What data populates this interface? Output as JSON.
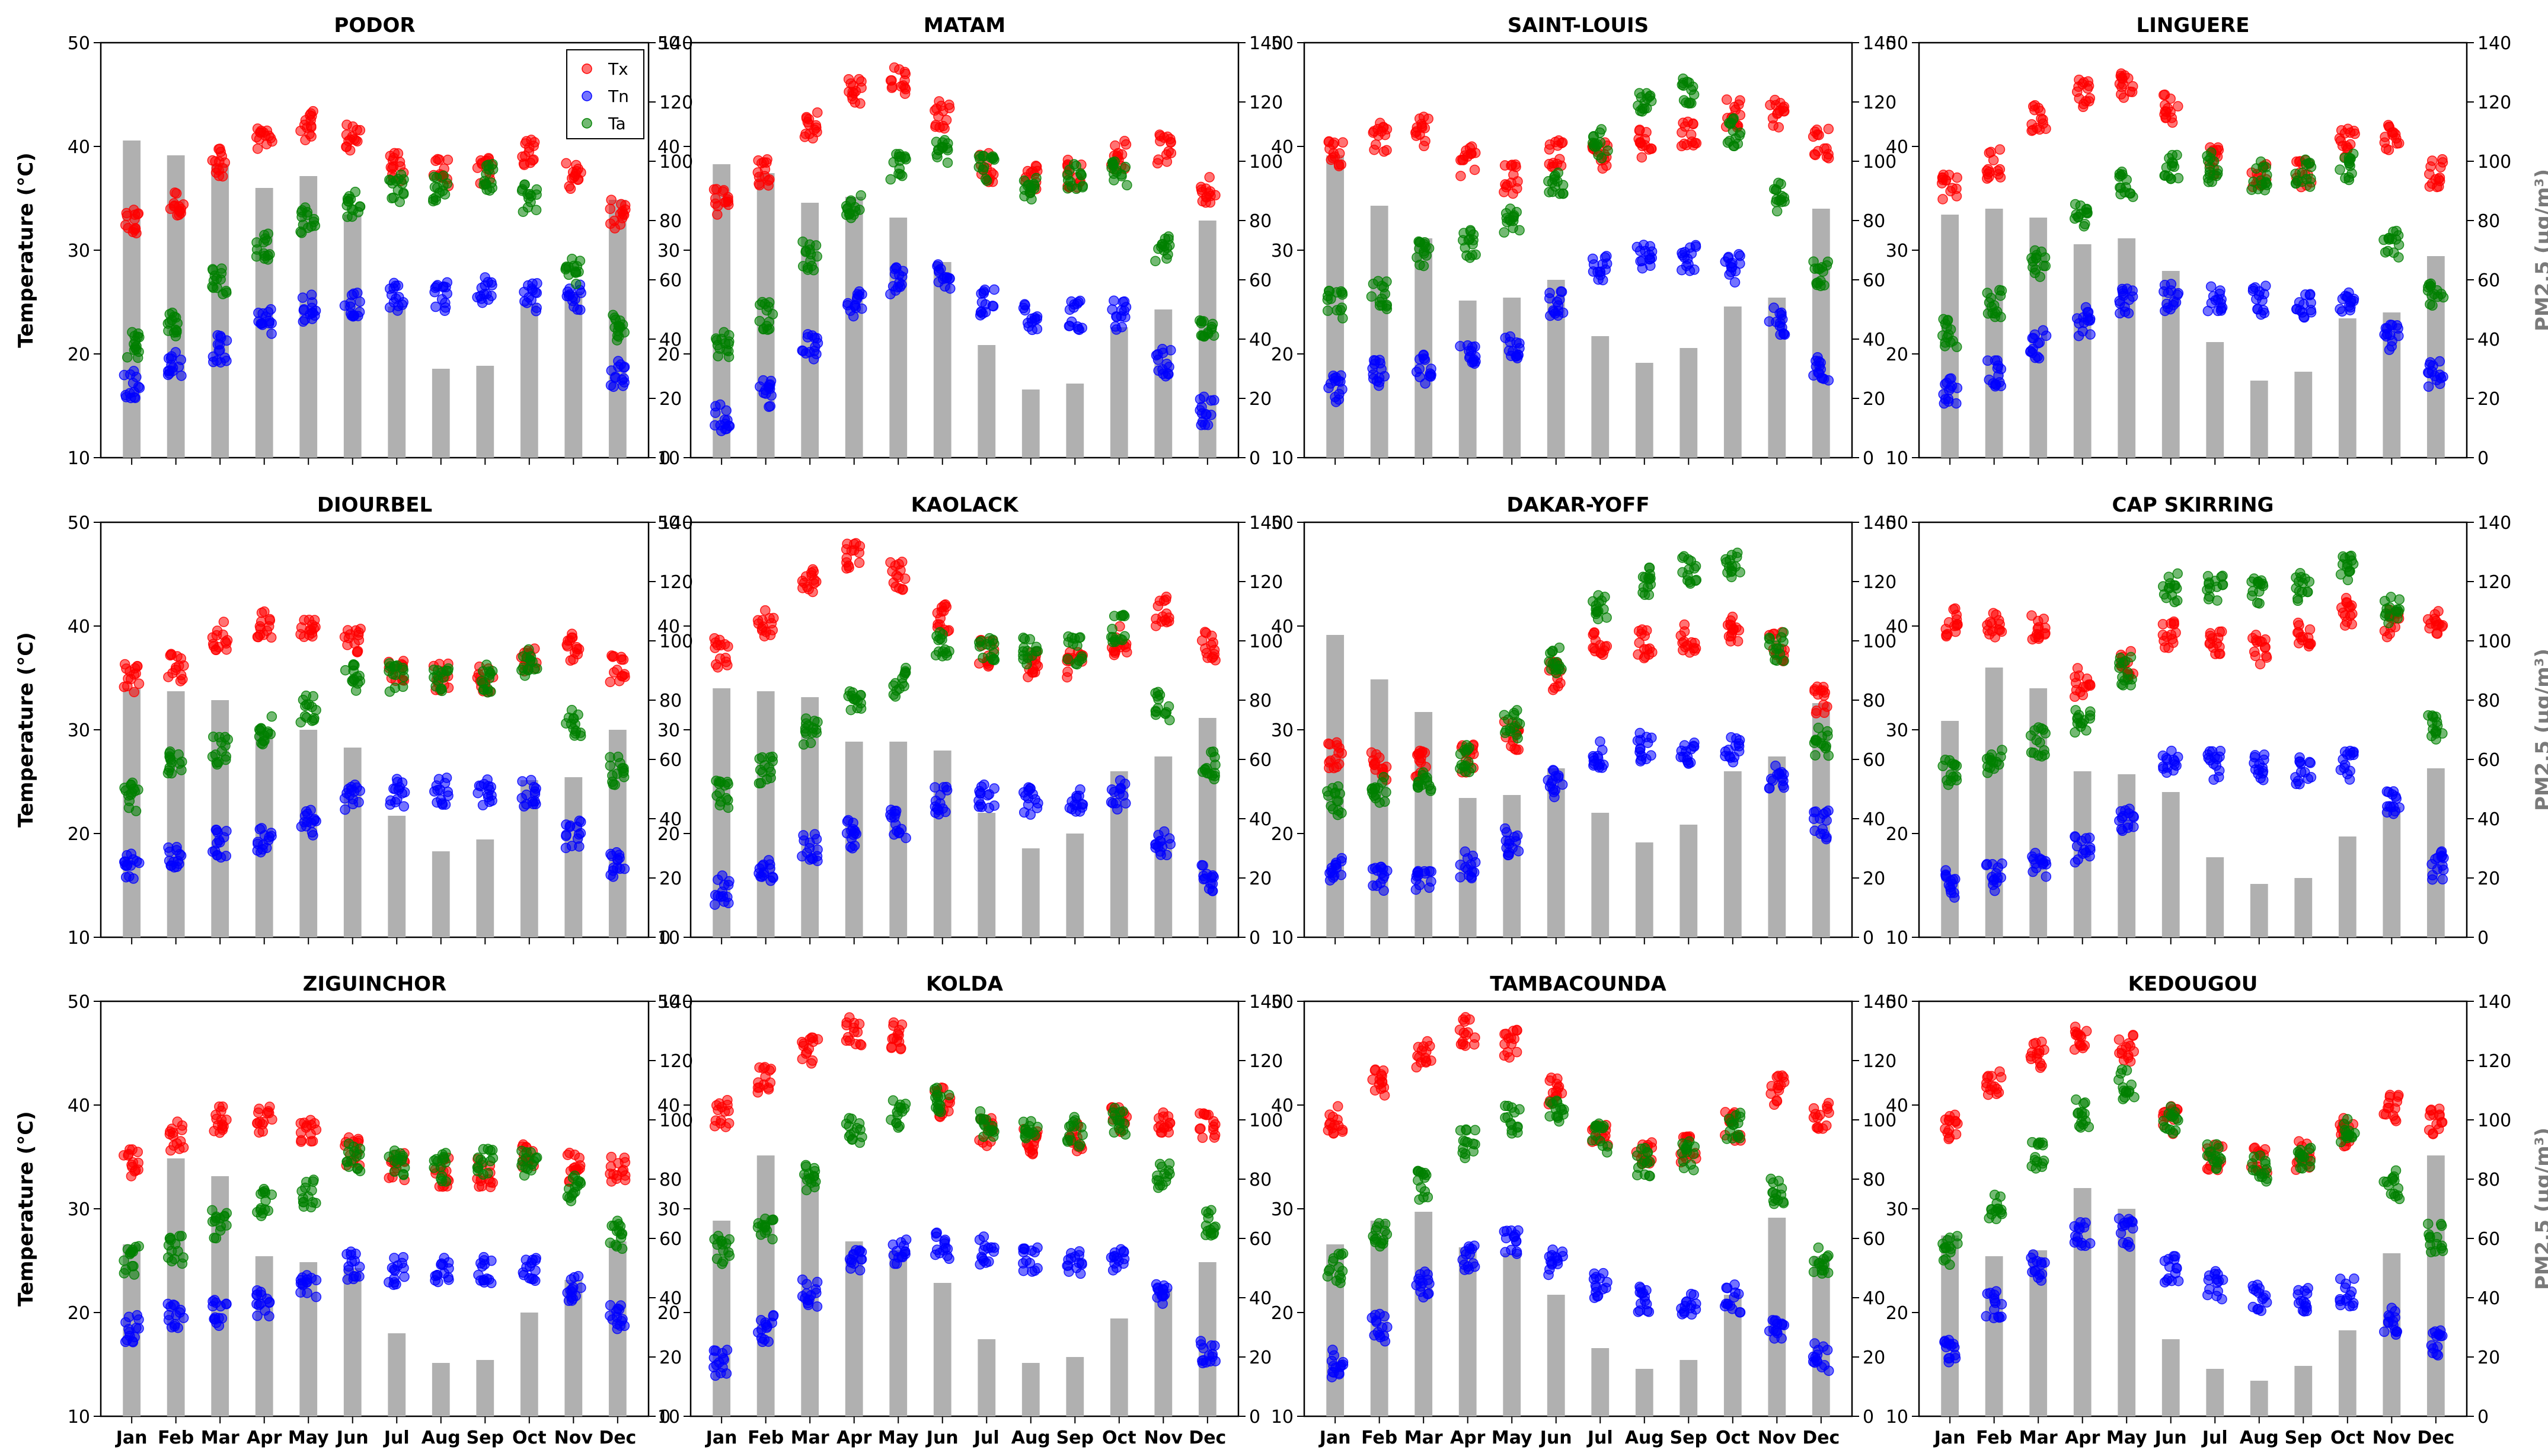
{
  "figure": {
    "left_axis_label": "Temperature (°C)",
    "right_axis_label": "PM2.5 (μg/m³)",
    "legend": [
      {
        "key": "Tx",
        "label": "Tx",
        "color": "#ff0000"
      },
      {
        "key": "Tn",
        "label": "Tn",
        "color": "#0000ff"
      },
      {
        "key": "Ta",
        "label": "Ta",
        "color": "#008000"
      }
    ],
    "bar_color": "#b0b0b0"
  },
  "chart_data": [
    {
      "type": "bar+scatter",
      "title": "PODOR",
      "categories": [
        "Jan",
        "Feb",
        "Mar",
        "Apr",
        "May",
        "Jun",
        "Jul",
        "Aug",
        "Sep",
        "Oct",
        "Nov",
        "Dec"
      ],
      "ylabel": "Temperature (°C)",
      "ylim": [
        10,
        50
      ],
      "y2label": "PM2.5 (μg/m³)",
      "y2lim": [
        0,
        140
      ],
      "legend_position": "top-right",
      "pm25": [
        107,
        102,
        99,
        91,
        95,
        82,
        51,
        30,
        31,
        52,
        56,
        87
      ],
      "tx": [
        32.5,
        34.5,
        38.5,
        40.5,
        42,
        41,
        38,
        37.5,
        37.5,
        39.5,
        37,
        33.5
      ],
      "tn": [
        17,
        19,
        20.5,
        23,
        24.5,
        25,
        25.5,
        25.5,
        26,
        25.5,
        25.5,
        18
      ],
      "ta": [
        21,
        23,
        27,
        30.5,
        33,
        34.5,
        36,
        36,
        37,
        35,
        28,
        22.5
      ]
    },
    {
      "type": "bar+scatter",
      "title": "MATAM",
      "categories": [
        "Jan",
        "Feb",
        "Mar",
        "Apr",
        "May",
        "Jun",
        "Jul",
        "Aug",
        "Sep",
        "Oct",
        "Nov",
        "Dec"
      ],
      "ylabel": "Temperature (°C)",
      "ylim": [
        10,
        50
      ],
      "y2label": "PM2.5 (μg/m³)",
      "y2lim": [
        0,
        140
      ],
      "legend_position": "none",
      "pm25": [
        99,
        96,
        86,
        88,
        81,
        66,
        38,
        23,
        25,
        44,
        50,
        80
      ],
      "tx": [
        87,
        96,
        112,
        124,
        127,
        116,
        98,
        94,
        96,
        102,
        104,
        90
      ],
      "tn": [
        14,
        22,
        38,
        52,
        60,
        62,
        53,
        48,
        48,
        48,
        32,
        16
      ],
      "ta": [
        38,
        48,
        68,
        84,
        98,
        104,
        98,
        92,
        94,
        96,
        70,
        45
      ]
    },
    {
      "type": "bar+scatter",
      "title": "SAINT-LOUIS",
      "categories": [
        "Jan",
        "Feb",
        "Mar",
        "Apr",
        "May",
        "Jun",
        "Jul",
        "Aug",
        "Sep",
        "Oct",
        "Nov",
        "Dec"
      ],
      "ylabel": "Temperature (°C)",
      "ylim": [
        10,
        50
      ],
      "y2label": "PM2.5 (μg/m³)",
      "y2lim": [
        0,
        140
      ],
      "legend_position": "none",
      "pm25": [
        102,
        85,
        74,
        53,
        54,
        60,
        41,
        32,
        37,
        51,
        54,
        84
      ],
      "tx": [
        103,
        108,
        110,
        100,
        94,
        102,
        102,
        106,
        110,
        116,
        116,
        106
      ],
      "tn": [
        23,
        28,
        30,
        34,
        38,
        52,
        64,
        67,
        67,
        64,
        46,
        30
      ],
      "ta": [
        52,
        55,
        68,
        72,
        80,
        94,
        106,
        118,
        124,
        110,
        88,
        62
      ]
    },
    {
      "type": "bar+scatter",
      "title": "LINGUERE",
      "categories": [
        "Jan",
        "Feb",
        "Mar",
        "Apr",
        "May",
        "Jun",
        "Jul",
        "Aug",
        "Sep",
        "Oct",
        "Nov",
        "Dec"
      ],
      "ylabel": "Temperature (°C)",
      "ylim": [
        10,
        50
      ],
      "y2label": "PM2.5 (μg/m³)",
      "y2lim": [
        0,
        140
      ],
      "legend_position": "none",
      "pm25": [
        82,
        84,
        81,
        72,
        74,
        63,
        39,
        26,
        29,
        47,
        49,
        68
      ],
      "tx": [
        91,
        99,
        114,
        123,
        125,
        118,
        100,
        95,
        96,
        106,
        108,
        96
      ],
      "tn": [
        22,
        28,
        38,
        46,
        52,
        54,
        54,
        53,
        52,
        52,
        40,
        28
      ],
      "ta": [
        42,
        52,
        66,
        82,
        92,
        98,
        98,
        95,
        96,
        98,
        72,
        56
      ]
    },
    {
      "type": "bar+scatter",
      "title": "DIOURBEL",
      "categories": [
        "Jan",
        "Feb",
        "Mar",
        "Apr",
        "May",
        "Jun",
        "Jul",
        "Aug",
        "Sep",
        "Oct",
        "Nov",
        "Dec"
      ],
      "ylabel": "Temperature (°C)",
      "ylim": [
        10,
        50
      ],
      "y2label": "PM2.5 (μg/m³)",
      "y2lim": [
        0,
        140
      ],
      "legend_position": "none",
      "pm25": [
        84,
        83,
        80,
        69,
        70,
        64,
        41,
        29,
        33,
        53,
        54,
        70
      ],
      "tx": [
        35,
        36,
        39,
        40,
        40,
        38.5,
        36,
        35,
        35,
        37,
        38,
        36
      ],
      "tn": [
        17,
        17.5,
        19,
        19.5,
        21,
        23.5,
        24,
        24,
        24,
        24,
        20,
        17
      ],
      "ta": [
        23.5,
        26.5,
        28,
        30,
        32,
        35,
        35,
        35,
        35,
        36.5,
        30.5,
        26
      ]
    },
    {
      "type": "bar+scatter",
      "title": "KAOLACK",
      "categories": [
        "Jan",
        "Feb",
        "Mar",
        "Apr",
        "May",
        "Jun",
        "Jul",
        "Aug",
        "Sep",
        "Oct",
        "Nov",
        "Dec"
      ],
      "ylabel": "Temperature (°C)",
      "ylim": [
        10,
        50
      ],
      "y2label": "PM2.5 (μg/m³)",
      "y2lim": [
        0,
        140
      ],
      "legend_position": "none",
      "pm25": [
        84,
        83,
        81,
        66,
        66,
        63,
        42,
        30,
        35,
        56,
        61,
        74
      ],
      "tx": [
        96,
        106,
        120,
        128,
        122,
        108,
        96,
        92,
        92,
        100,
        110,
        98
      ],
      "tn": [
        16,
        22,
        30,
        35,
        38,
        46,
        48,
        46,
        45,
        48,
        32,
        20
      ],
      "ta": [
        48,
        56,
        70,
        80,
        86,
        98,
        98,
        97,
        97,
        104,
        78,
        58
      ]
    },
    {
      "type": "bar+scatter",
      "title": "DAKAR-YOFF",
      "categories": [
        "Jan",
        "Feb",
        "Mar",
        "Apr",
        "May",
        "Jun",
        "Jul",
        "Aug",
        "Sep",
        "Oct",
        "Nov",
        "Dec"
      ],
      "ylabel": "Temperature (°C)",
      "ylim": [
        10,
        50
      ],
      "y2label": "PM2.5 (μg/m³)",
      "y2lim": [
        0,
        140
      ],
      "legend_position": "none",
      "pm25": [
        102,
        87,
        76,
        47,
        48,
        57,
        42,
        32,
        38,
        56,
        61,
        79
      ],
      "tx": [
        62,
        58,
        58,
        60,
        68,
        88,
        98,
        99,
        101,
        104,
        98,
        80
      ],
      "tn": [
        22,
        20,
        20,
        24,
        32,
        52,
        62,
        64,
        63,
        64,
        54,
        38
      ],
      "ta": [
        46,
        50,
        54,
        60,
        72,
        94,
        112,
        120,
        124,
        126,
        98,
        66
      ]
    },
    {
      "type": "bar+scatter",
      "title": "CAP SKIRRING",
      "categories": [
        "Jan",
        "Feb",
        "Mar",
        "Apr",
        "May",
        "Jun",
        "Jul",
        "Aug",
        "Sep",
        "Oct",
        "Nov",
        "Dec"
      ],
      "ylabel": "Temperature (°C)",
      "ylim": [
        10,
        50
      ],
      "y2label": "PM2.5 (μg/m³)",
      "y2lim": [
        0,
        140
      ],
      "legend_position": "none",
      "pm25": [
        73,
        91,
        84,
        56,
        55,
        49,
        27,
        18,
        20,
        34,
        44,
        57
      ],
      "tx": [
        106,
        106,
        104,
        86,
        92,
        102,
        100,
        97,
        102,
        110,
        106,
        106
      ],
      "tn": [
        18,
        20,
        24,
        30,
        40,
        58,
        58,
        57,
        56,
        58,
        46,
        24
      ],
      "ta": [
        56,
        60,
        66,
        74,
        90,
        118,
        118,
        116,
        118,
        124,
        110,
        70
      ]
    },
    {
      "type": "bar+scatter",
      "title": "ZIGUINCHOR",
      "categories": [
        "Jan",
        "Feb",
        "Mar",
        "Apr",
        "May",
        "Jun",
        "Jul",
        "Aug",
        "Sep",
        "Oct",
        "Nov",
        "Dec"
      ],
      "ylabel": "Temperature (°C)",
      "ylim": [
        10,
        50
      ],
      "y2label": "PM2.5 (μg/m³)",
      "y2lim": [
        0,
        140
      ],
      "legend_position": "none",
      "pm25": [
        58,
        87,
        81,
        54,
        52,
        50,
        28,
        18,
        19,
        35,
        46,
        59
      ],
      "tx": [
        34.5,
        37,
        38.5,
        38.5,
        37.5,
        35.5,
        34,
        33.5,
        33.5,
        35,
        34,
        34
      ],
      "tn": [
        18.5,
        19.5,
        20,
        21,
        22.5,
        24.5,
        24,
        24,
        24,
        24,
        22.5,
        19.5
      ],
      "ta": [
        25,
        26,
        28.5,
        30.5,
        31.5,
        35,
        34.5,
        34,
        34.5,
        34.5,
        32,
        27.5
      ]
    },
    {
      "type": "bar+scatter",
      "title": "KOLDA",
      "categories": [
        "Jan",
        "Feb",
        "Mar",
        "Apr",
        "May",
        "Jun",
        "Jul",
        "Aug",
        "Sep",
        "Oct",
        "Nov",
        "Dec"
      ],
      "ylabel": "Temperature (°C)",
      "ylim": [
        10,
        50
      ],
      "y2label": "PM2.5 (μg/m³)",
      "y2lim": [
        0,
        140
      ],
      "legend_position": "none",
      "pm25": [
        66,
        88,
        82,
        59,
        56,
        45,
        26,
        18,
        20,
        33,
        43,
        52
      ],
      "tx": [
        102,
        114,
        124,
        130,
        128,
        106,
        96,
        92,
        94,
        100,
        100,
        98
      ],
      "tn": [
        18,
        30,
        42,
        52,
        56,
        58,
        56,
        53,
        52,
        52,
        40,
        22
      ],
      "ta": [
        56,
        64,
        80,
        96,
        102,
        106,
        98,
        96,
        96,
        100,
        82,
        66
      ]
    },
    {
      "type": "bar+scatter",
      "title": "TAMBACOUNDA",
      "categories": [
        "Jan",
        "Feb",
        "Mar",
        "Apr",
        "May",
        "Jun",
        "Jul",
        "Aug",
        "Sep",
        "Oct",
        "Nov",
        "Dec"
      ],
      "ylabel": "Temperature (°C)",
      "ylim": [
        10,
        50
      ],
      "y2label": "PM2.5 (μg/m³)",
      "y2lim": [
        0,
        140
      ],
      "legend_position": "none",
      "pm25": [
        58,
        66,
        69,
        57,
        55,
        41,
        23,
        16,
        19,
        41,
        67,
        54
      ],
      "tx": [
        100,
        112,
        122,
        130,
        126,
        110,
        94,
        88,
        90,
        98,
        110,
        102
      ],
      "tn": [
        18,
        30,
        44,
        54,
        58,
        52,
        44,
        40,
        38,
        40,
        28,
        20
      ],
      "ta": [
        50,
        62,
        78,
        92,
        100,
        104,
        94,
        86,
        88,
        98,
        76,
        52
      ]
    },
    {
      "type": "bar+scatter",
      "title": "KEDOUGOU",
      "categories": [
        "Jan",
        "Feb",
        "Mar",
        "Apr",
        "May",
        "Jun",
        "Jul",
        "Aug",
        "Sep",
        "Oct",
        "Nov",
        "Dec"
      ],
      "ylabel": "Temperature (°C)",
      "ylim": [
        10,
        50
      ],
      "y2label": "PM2.5 (μg/m³)",
      "y2lim": [
        0,
        140
      ],
      "legend_position": "none",
      "pm25": [
        61,
        54,
        56,
        77,
        70,
        26,
        16,
        12,
        17,
        29,
        55,
        88
      ],
      "tx": [
        98,
        112,
        122,
        128,
        124,
        100,
        88,
        86,
        88,
        96,
        104,
        100
      ],
      "tn": [
        22,
        38,
        50,
        62,
        62,
        50,
        44,
        40,
        40,
        42,
        32,
        24
      ],
      "ta": [
        56,
        70,
        88,
        102,
        112,
        100,
        88,
        84,
        86,
        96,
        78,
        60
      ]
    }
  ]
}
